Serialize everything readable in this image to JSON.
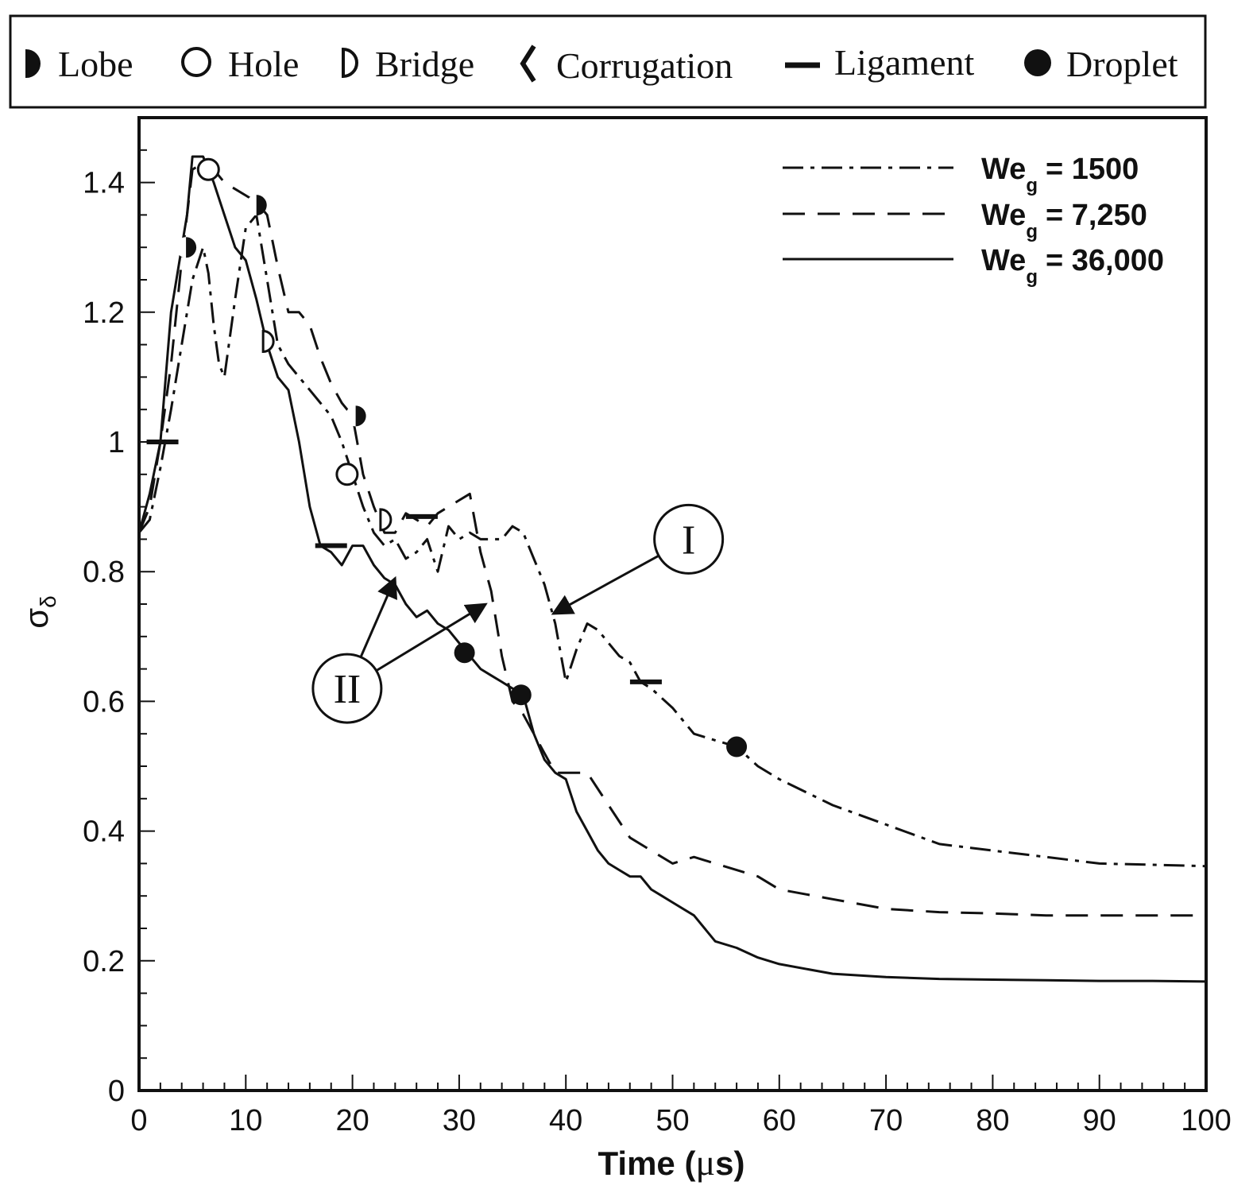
{
  "chart_data": {
    "type": "line",
    "xlabel_main": "Time (",
    "xlabel_mu": "μ",
    "xlabel_tail": "s)",
    "ylabel_main": "σ",
    "ylabel_sub": "δ",
    "xlim": [
      0,
      100
    ],
    "ylim": [
      0,
      1.5
    ],
    "x_ticks": [
      "0",
      "10",
      "20",
      "30",
      "40",
      "50",
      "60",
      "70",
      "80",
      "90",
      "100"
    ],
    "y_ticks": [
      "0",
      "0.2",
      "0.4",
      "0.6",
      "0.8",
      "1",
      "1.2",
      "1.4"
    ],
    "legend_position": "top-right",
    "structure_legend": [
      {
        "label": "Lobe",
        "symbol": "half-filled-circle"
      },
      {
        "label": "Hole",
        "symbol": "open-circle"
      },
      {
        "label": "Bridge",
        "symbol": "open-half-circle"
      },
      {
        "label": "Corrugation",
        "symbol": "zigzag"
      },
      {
        "label": "Ligament",
        "symbol": "dash"
      },
      {
        "label": "Droplet",
        "symbol": "filled-circle"
      }
    ],
    "series": [
      {
        "name": "We_g = 1500",
        "legend_main": "We",
        "legend_sub": "g",
        "legend_value": "= 1500",
        "style": "dashdot",
        "x": [
          0,
          1,
          2,
          3,
          4,
          5,
          6,
          6.5,
          7,
          7.5,
          8,
          9,
          10,
          11,
          12,
          13,
          14,
          15,
          16,
          17,
          18,
          19,
          20,
          21,
          22,
          23,
          24,
          25,
          26,
          27,
          28,
          29,
          30,
          31,
          32,
          33,
          34,
          35,
          36,
          37,
          38,
          39,
          40,
          41,
          42,
          43,
          44,
          45,
          46,
          47,
          48,
          50,
          52,
          54,
          56,
          58,
          60,
          65,
          70,
          75,
          80,
          85,
          90,
          95,
          100
        ],
        "y": [
          0.86,
          0.88,
          0.96,
          1.05,
          1.15,
          1.25,
          1.3,
          1.26,
          1.18,
          1.12,
          1.1,
          1.22,
          1.33,
          1.35,
          1.25,
          1.15,
          1.12,
          1.1,
          1.08,
          1.06,
          1.04,
          1.0,
          0.95,
          0.9,
          0.86,
          0.84,
          0.85,
          0.82,
          0.83,
          0.85,
          0.8,
          0.87,
          0.85,
          0.86,
          0.85,
          0.85,
          0.85,
          0.87,
          0.86,
          0.82,
          0.78,
          0.72,
          0.63,
          0.68,
          0.72,
          0.71,
          0.69,
          0.67,
          0.66,
          0.63,
          0.62,
          0.59,
          0.55,
          0.54,
          0.53,
          0.5,
          0.48,
          0.44,
          0.41,
          0.38,
          0.37,
          0.36,
          0.35,
          0.348,
          0.346
        ]
      },
      {
        "name": "We_g = 7,250",
        "legend_main": "We",
        "legend_sub": "g",
        "legend_value": "= 7,250",
        "style": "dashed",
        "x": [
          0,
          1,
          2,
          3,
          4,
          5,
          6,
          7,
          8,
          9,
          10,
          11,
          12,
          13,
          14,
          15,
          16,
          17,
          18,
          19,
          20,
          21,
          22,
          23,
          24,
          25,
          26,
          27,
          28,
          29,
          30,
          31,
          32,
          33,
          34,
          35,
          36,
          37,
          38,
          39,
          40,
          42,
          44,
          46,
          48,
          50,
          52,
          54,
          56,
          58,
          60,
          65,
          70,
          75,
          80,
          85,
          90,
          95,
          100
        ],
        "y": [
          0.86,
          0.9,
          1.0,
          1.12,
          1.28,
          1.42,
          1.43,
          1.42,
          1.4,
          1.39,
          1.38,
          1.37,
          1.35,
          1.27,
          1.2,
          1.2,
          1.18,
          1.13,
          1.09,
          1.06,
          1.04,
          0.95,
          0.9,
          0.86,
          0.86,
          0.89,
          0.88,
          0.87,
          0.89,
          0.9,
          0.91,
          0.92,
          0.83,
          0.77,
          0.67,
          0.6,
          0.58,
          0.55,
          0.52,
          0.49,
          0.49,
          0.49,
          0.44,
          0.39,
          0.37,
          0.35,
          0.36,
          0.35,
          0.34,
          0.33,
          0.31,
          0.295,
          0.28,
          0.275,
          0.273,
          0.27,
          0.27,
          0.27,
          0.27
        ]
      },
      {
        "name": "We_g = 36,000",
        "legend_main": "We",
        "legend_sub": "g",
        "legend_value": "= 36,000",
        "style": "solid",
        "x": [
          0,
          1,
          2,
          3,
          4,
          4.5,
          5,
          6,
          7,
          8,
          9,
          10,
          11,
          12,
          13,
          14,
          15,
          16,
          17,
          18,
          19,
          20,
          21,
          22,
          23,
          24,
          25,
          26,
          27,
          28,
          29,
          30,
          31,
          32,
          33,
          34,
          35,
          36,
          37,
          38,
          39,
          40,
          41,
          42,
          43,
          44,
          45,
          46,
          47,
          48,
          49,
          50,
          52,
          54,
          56,
          58,
          60,
          65,
          70,
          75,
          80,
          85,
          90,
          95,
          100
        ],
        "y": [
          0.86,
          0.92,
          1.0,
          1.2,
          1.3,
          1.35,
          1.44,
          1.44,
          1.4,
          1.35,
          1.3,
          1.28,
          1.22,
          1.15,
          1.1,
          1.08,
          1.0,
          0.9,
          0.84,
          0.83,
          0.81,
          0.84,
          0.84,
          0.81,
          0.79,
          0.78,
          0.75,
          0.73,
          0.74,
          0.72,
          0.71,
          0.69,
          0.67,
          0.65,
          0.64,
          0.63,
          0.62,
          0.61,
          0.55,
          0.51,
          0.49,
          0.48,
          0.43,
          0.4,
          0.37,
          0.35,
          0.34,
          0.33,
          0.33,
          0.31,
          0.3,
          0.29,
          0.27,
          0.23,
          0.22,
          0.205,
          0.195,
          0.18,
          0.175,
          0.172,
          0.171,
          0.17,
          0.169,
          0.169,
          0.168
        ]
      }
    ],
    "markers": [
      {
        "type": "ligament",
        "x": 2.2,
        "y": 1.0
      },
      {
        "type": "lobe",
        "x": 4.4,
        "y": 1.3
      },
      {
        "type": "hole",
        "x": 6.5,
        "y": 1.42
      },
      {
        "type": "lobe",
        "x": 11,
        "y": 1.365
      },
      {
        "type": "bridge",
        "x": 12,
        "y": 1.155
      },
      {
        "type": "ligament",
        "x": 18,
        "y": 0.84
      },
      {
        "type": "hole",
        "x": 19.5,
        "y": 0.95
      },
      {
        "type": "lobe",
        "x": 20.3,
        "y": 1.04
      },
      {
        "type": "bridge",
        "x": 23,
        "y": 0.88
      },
      {
        "type": "ligament",
        "x": 26.5,
        "y": 0.885
      },
      {
        "type": "droplet",
        "x": 30.5,
        "y": 0.675
      },
      {
        "type": "droplet",
        "x": 35.8,
        "y": 0.61
      },
      {
        "type": "ligament",
        "x": 47.5,
        "y": 0.63
      },
      {
        "type": "droplet",
        "x": 56,
        "y": 0.53
      }
    ],
    "annotations": [
      {
        "label": "I",
        "cx": 51.5,
        "cy": 0.85,
        "targets": [
          [
            38.8,
            0.735
          ]
        ]
      },
      {
        "label": "II",
        "cx": 19.5,
        "cy": 0.62,
        "targets": [
          [
            24,
            0.79
          ],
          [
            32.5,
            0.75
          ]
        ]
      }
    ]
  }
}
